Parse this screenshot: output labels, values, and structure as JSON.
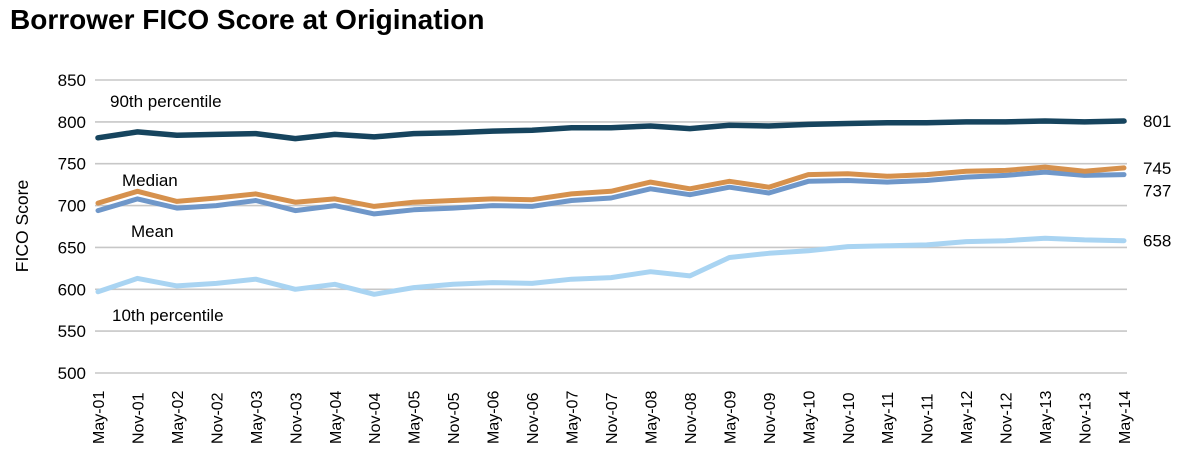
{
  "title": "Borrower FICO Score at Origination",
  "chart_data": {
    "type": "line",
    "title": "Borrower FICO Score at Origination",
    "xlabel": "",
    "ylabel": "FICO Score",
    "ylim": [
      500,
      850
    ],
    "y_ticks": [
      850,
      800,
      750,
      700,
      650,
      600,
      550,
      500
    ],
    "grid": "horizontal",
    "legend": "inline-labels",
    "categories": [
      "May-01",
      "Nov-01",
      "May-02",
      "Nov-02",
      "May-03",
      "Nov-03",
      "May-04",
      "Nov-04",
      "May-05",
      "Nov-05",
      "May-06",
      "Nov-06",
      "May-07",
      "Nov-07",
      "May-08",
      "Nov-08",
      "May-09",
      "Nov-09",
      "May-10",
      "Nov-10",
      "May-11",
      "Nov-11",
      "May-12",
      "Nov-12",
      "May-13",
      "Nov-13",
      "May-14"
    ],
    "series": [
      {
        "name": "90th percentile",
        "color": "#16445e",
        "end_label": "801",
        "values": [
          781,
          788,
          784,
          785,
          786,
          780,
          785,
          782,
          786,
          787,
          789,
          790,
          793,
          793,
          795,
          792,
          796,
          795,
          797,
          798,
          799,
          799,
          800,
          800,
          801,
          800,
          801
        ]
      },
      {
        "name": "Median",
        "color": "#d6914d",
        "end_label": "745",
        "values": [
          703,
          717,
          705,
          709,
          714,
          704,
          708,
          699,
          704,
          706,
          708,
          707,
          714,
          717,
          728,
          720,
          729,
          722,
          737,
          738,
          735,
          737,
          741,
          742,
          746,
          741,
          745
        ]
      },
      {
        "name": "Mean",
        "color": "#6f97c9",
        "end_label": "737",
        "values": [
          694,
          708,
          697,
          700,
          706,
          694,
          700,
          690,
          695,
          697,
          700,
          699,
          706,
          709,
          720,
          713,
          722,
          715,
          729,
          730,
          728,
          730,
          734,
          736,
          740,
          736,
          737
        ]
      },
      {
        "name": "10th percentile",
        "color": "#a9d4f2",
        "end_label": "658",
        "values": [
          597,
          613,
          604,
          607,
          612,
          600,
          606,
          594,
          602,
          606,
          608,
          607,
          612,
          614,
          621,
          616,
          638,
          643,
          646,
          651,
          652,
          653,
          657,
          658,
          661,
          659,
          658
        ]
      }
    ],
    "colors": {
      "gridline": "#c7c7c7",
      "text": "#000000",
      "background": "#ffffff"
    }
  }
}
